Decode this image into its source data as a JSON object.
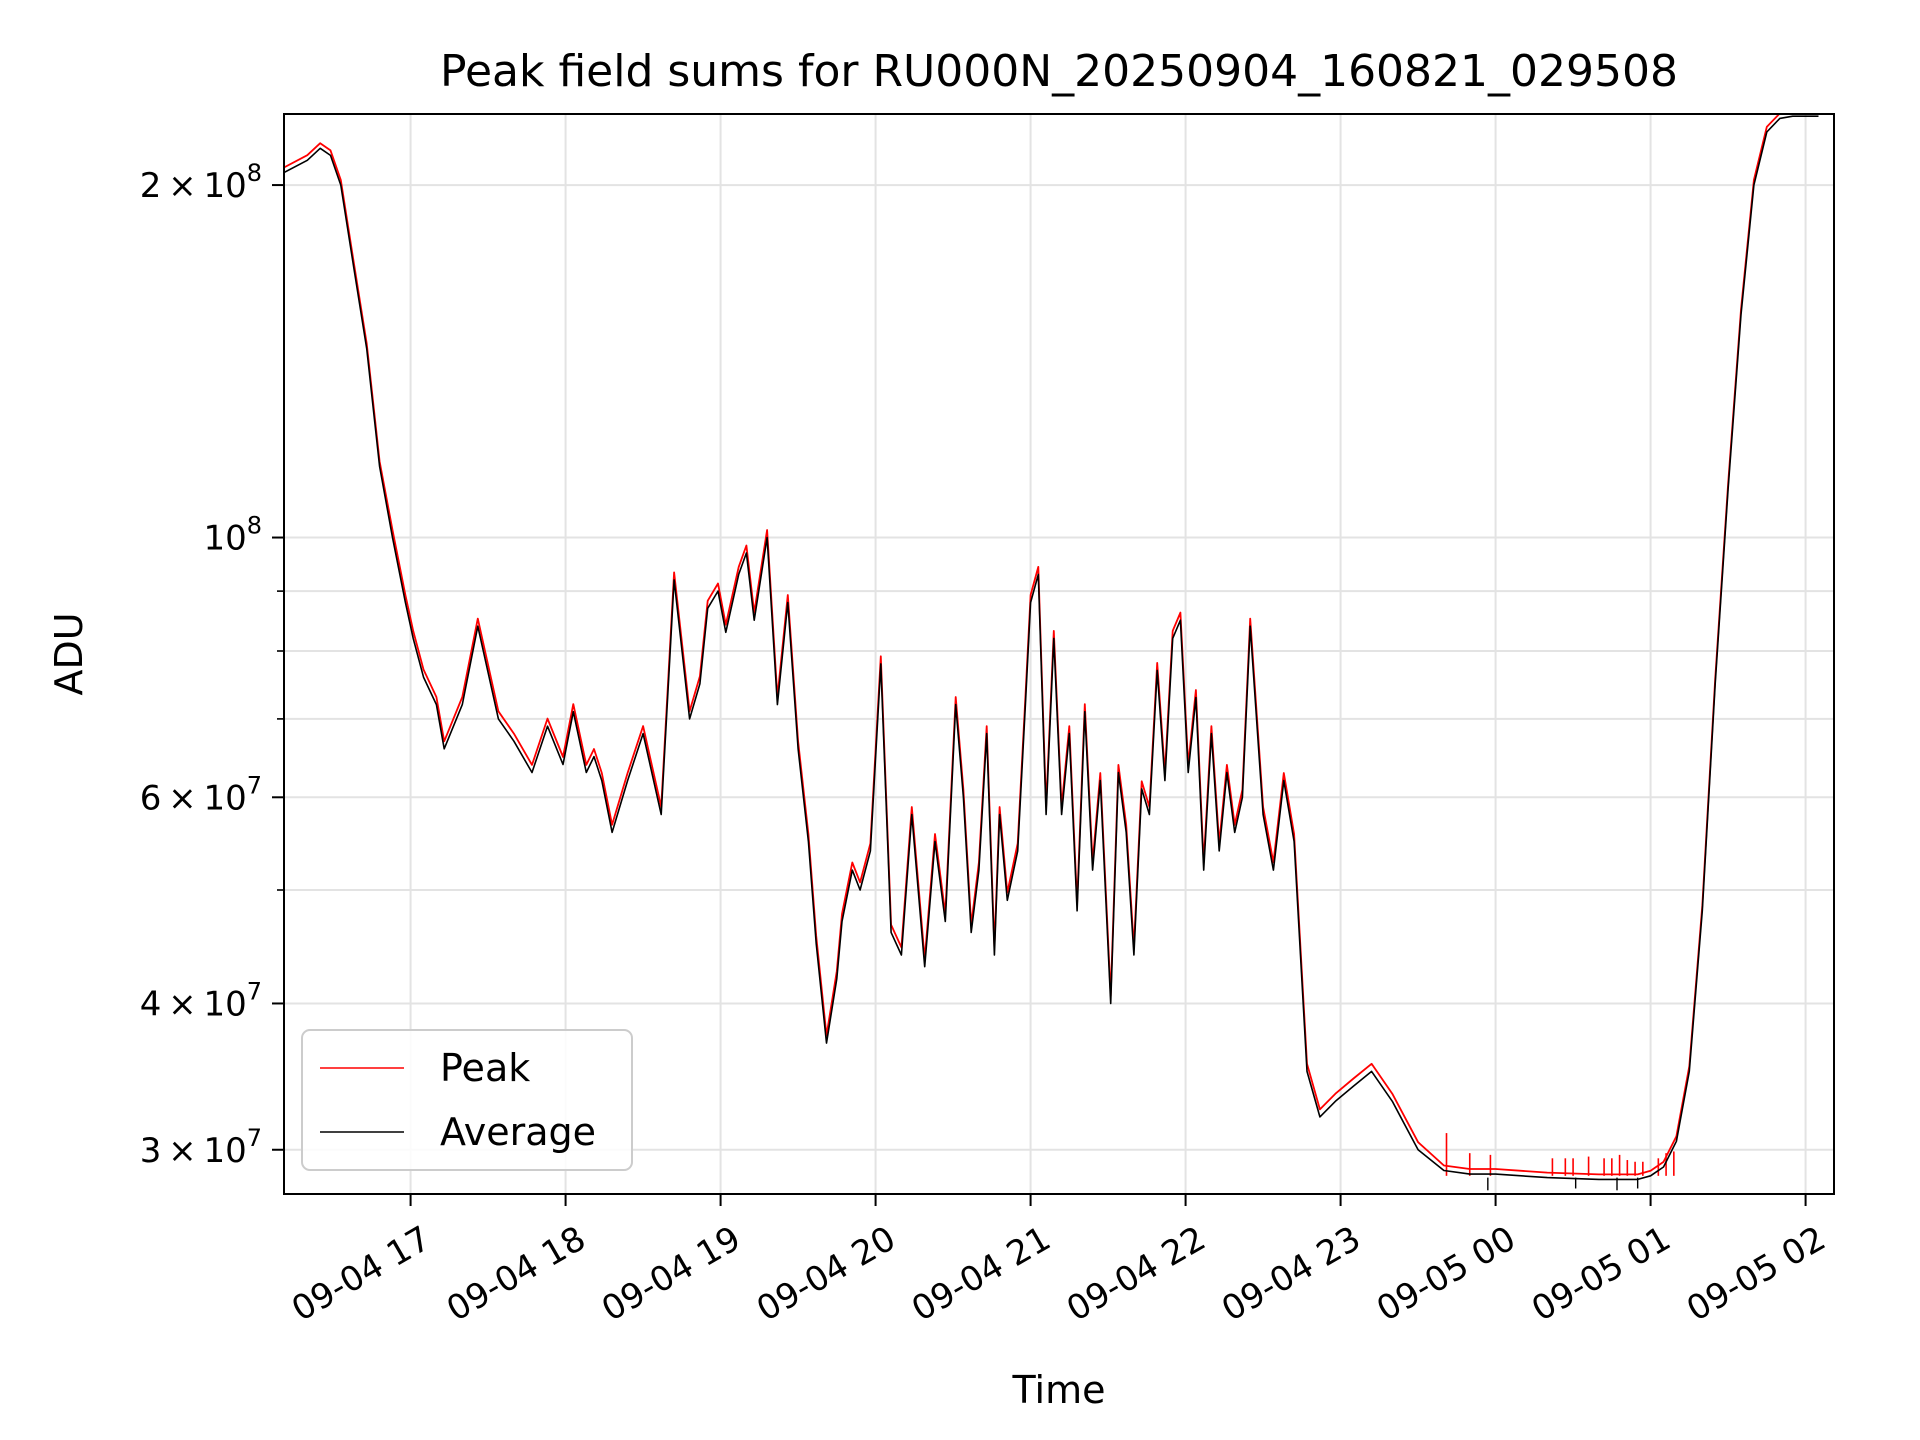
{
  "chart_data": {
    "type": "line",
    "title": "Peak field sums for RU000N_20250904_160821_029508",
    "xlabel": "Time",
    "ylabel": "ADU",
    "yscale": "log",
    "ylim": [
      27500000,
      230000000
    ],
    "xlim": [
      "09-04 16:11",
      "09-05 02:11"
    ],
    "grid": true,
    "legend_position": "lower-left",
    "x_ticks": [
      "09-04 17",
      "09-04 18",
      "09-04 19",
      "09-04 20",
      "09-04 21",
      "09-04 22",
      "09-04 23",
      "09-05 00",
      "09-05 01",
      "09-05 02"
    ],
    "y_ticks": [
      {
        "value": 30000000,
        "label_mantissa": "3",
        "label_exp": "7"
      },
      {
        "value": 40000000,
        "label_mantissa": "4",
        "label_exp": "7"
      },
      {
        "value": 60000000,
        "label_mantissa": "6",
        "label_exp": "7"
      },
      {
        "value": 100000000,
        "label_mantissa": "",
        "label_exp": "8"
      },
      {
        "value": 200000000,
        "label_mantissa": "2",
        "label_exp": "8"
      }
    ],
    "y_minor_ticks": [
      50000000,
      70000000,
      80000000,
      90000000
    ],
    "series": [
      {
        "name": "Peak",
        "color": "#ff0000"
      },
      {
        "name": "Average",
        "color": "#000000"
      }
    ],
    "x": [
      "09-04 16:11",
      "09-04 16:20",
      "09-04 16:25",
      "09-04 16:29",
      "09-04 16:33",
      "09-04 16:38",
      "09-04 16:43",
      "09-04 16:48",
      "09-04 16:53",
      "09-04 16:58",
      "09-04 17:01",
      "09-04 17:05",
      "09-04 17:10",
      "09-04 17:13",
      "09-04 17:20",
      "09-04 17:26",
      "09-04 17:34",
      "09-04 17:40",
      "09-04 17:47",
      "09-04 17:53",
      "09-04 17:59",
      "09-04 18:03",
      "09-04 18:08",
      "09-04 18:11",
      "09-04 18:14",
      "09-04 18:18",
      "09-04 18:24",
      "09-04 18:30",
      "09-04 18:37",
      "09-04 18:42",
      "09-04 18:48",
      "09-04 18:52",
      "09-04 18:55",
      "09-04 18:59",
      "09-04 19:02",
      "09-04 19:07",
      "09-04 19:10",
      "09-04 19:13",
      "09-04 19:18",
      "09-04 19:22",
      "09-04 19:26",
      "09-04 19:30",
      "09-04 19:34",
      "09-04 19:37",
      "09-04 19:41",
      "09-04 19:45",
      "09-04 19:47",
      "09-04 19:51",
      "09-04 19:54",
      "09-04 19:58",
      "09-04 20:02",
      "09-04 20:06",
      "09-04 20:10",
      "09-04 20:14",
      "09-04 20:19",
      "09-04 20:23",
      "09-04 20:27",
      "09-04 20:31",
      "09-04 20:34",
      "09-04 20:37",
      "09-04 20:40",
      "09-04 20:43",
      "09-04 20:46",
      "09-04 20:48",
      "09-04 20:51",
      "09-04 20:55",
      "09-04 20:58",
      "09-04 21:00",
      "09-04 21:03",
      "09-04 21:06",
      "09-04 21:09",
      "09-04 21:12",
      "09-04 21:15",
      "09-04 21:18",
      "09-04 21:21",
      "09-04 21:24",
      "09-04 21:27",
      "09-04 21:31",
      "09-04 21:34",
      "09-04 21:37",
      "09-04 21:40",
      "09-04 21:43",
      "09-04 21:46",
      "09-04 21:49",
      "09-04 21:52",
      "09-04 21:55",
      "09-04 21:58",
      "09-04 22:01",
      "09-04 22:04",
      "09-04 22:07",
      "09-04 22:10",
      "09-04 22:13",
      "09-04 22:16",
      "09-04 22:19",
      "09-04 22:22",
      "09-04 22:25",
      "09-04 22:30",
      "09-04 22:34",
      "09-04 22:38",
      "09-04 22:42",
      "09-04 22:47",
      "09-04 22:52",
      "09-04 22:58",
      "09-04 23:05",
      "09-04 23:12",
      "09-04 23:20",
      "09-04 23:30",
      "09-04 23:40",
      "09-04 23:50",
      "09-05 00:00",
      "09-05 00:20",
      "09-05 00:40",
      "09-05 00:55",
      "09-05 01:00",
      "09-05 01:05",
      "09-05 01:10",
      "09-05 01:15",
      "09-05 01:20",
      "09-05 01:25",
      "09-05 01:30",
      "09-05 01:35",
      "09-05 01:40",
      "09-05 01:45",
      "09-05 01:50",
      "09-05 01:55",
      "09-05 02:00",
      "09-05 02:05",
      "09-05 02:11"
    ],
    "average": [
      205000000,
      210000000,
      215000000,
      212000000,
      200000000,
      170000000,
      145000000,
      115000000,
      100000000,
      88000000,
      82000000,
      76000000,
      72000000,
      66000000,
      72000000,
      84000000,
      70000000,
      67000000,
      63000000,
      69000000,
      64000000,
      71000000,
      63000000,
      65000000,
      62000000,
      56000000,
      62000000,
      68000000,
      58000000,
      92000000,
      70000000,
      75000000,
      87000000,
      90000000,
      83000000,
      93000000,
      97000000,
      85000000,
      100000000,
      72000000,
      88000000,
      66000000,
      55000000,
      45000000,
      37000000,
      42000000,
      47000000,
      52000000,
      50000000,
      54000000,
      78000000,
      46000000,
      44000000,
      58000000,
      43000000,
      55000000,
      47000000,
      72000000,
      60000000,
      46000000,
      52000000,
      68000000,
      44000000,
      58000000,
      49000000,
      54000000,
      72000000,
      88000000,
      93000000,
      58000000,
      82000000,
      58000000,
      68000000,
      48000000,
      71000000,
      52000000,
      62000000,
      40000000,
      63000000,
      56000000,
      44000000,
      61000000,
      58000000,
      77000000,
      62000000,
      82000000,
      85000000,
      63000000,
      73000000,
      52000000,
      68000000,
      54000000,
      63000000,
      56000000,
      60000000,
      84000000,
      58000000,
      52000000,
      62000000,
      55000000,
      35000000,
      32000000,
      33000000,
      34000000,
      35000000,
      33000000,
      30000000,
      28800000,
      28600000,
      28600000,
      28400000,
      28300000,
      28300000,
      28500000,
      29000000,
      30500000,
      35000000,
      48000000,
      75000000,
      110000000,
      155000000,
      200000000,
      222000000,
      228000000,
      229000000,
      229000000,
      229000000
    ],
    "peak_excess": [
      0.01,
      0.01,
      0.01,
      0.01,
      0.01,
      0.01,
      0.01,
      0.01,
      0.015,
      0.015,
      0.015,
      0.015,
      0.015,
      0.015,
      0.015,
      0.015,
      0.015,
      0.015,
      0.015,
      0.015,
      0.015,
      0.015,
      0.015,
      0.015,
      0.015,
      0.015,
      0.015,
      0.015,
      0.015,
      0.015,
      0.015,
      0.015,
      0.015,
      0.015,
      0.015,
      0.015,
      0.015,
      0.015,
      0.015,
      0.015,
      0.015,
      0.015,
      0.015,
      0.015,
      0.015,
      0.015,
      0.015,
      0.015,
      0.015,
      0.015,
      0.015,
      0.015,
      0.015,
      0.015,
      0.015,
      0.015,
      0.015,
      0.015,
      0.015,
      0.015,
      0.015,
      0.015,
      0.015,
      0.015,
      0.015,
      0.015,
      0.015,
      0.015,
      0.015,
      0.015,
      0.015,
      0.015,
      0.015,
      0.015,
      0.015,
      0.015,
      0.015,
      0.015,
      0.015,
      0.015,
      0.015,
      0.015,
      0.015,
      0.015,
      0.015,
      0.015,
      0.015,
      0.015,
      0.015,
      0.015,
      0.015,
      0.015,
      0.015,
      0.015,
      0.015,
      0.015,
      0.015,
      0.015,
      0.015,
      0.015,
      0.015,
      0.015,
      0.015,
      0.015,
      0.015,
      0.015,
      0.015,
      0.01,
      0.01,
      0.01,
      0.01,
      0.01,
      0.01,
      0.01,
      0.01,
      0.01,
      0.01,
      0.01,
      0.01,
      0.01,
      0.01,
      0.01,
      0.01,
      0.01,
      0.01,
      0.01,
      0.01
    ],
    "peak_spikes": [
      {
        "x": "09-04 23:41",
        "value": 31000000
      },
      {
        "x": "09-04 23:50",
        "value": 29800000
      },
      {
        "x": "09-04 23:58",
        "value": 29700000
      },
      {
        "x": "09-05 00:22",
        "value": 29500000
      },
      {
        "x": "09-05 00:27",
        "value": 29500000
      },
      {
        "x": "09-05 00:30",
        "value": 29500000
      },
      {
        "x": "09-05 00:36",
        "value": 29600000
      },
      {
        "x": "09-05 00:42",
        "value": 29500000
      },
      {
        "x": "09-05 00:45",
        "value": 29500000
      },
      {
        "x": "09-05 00:48",
        "value": 29700000
      },
      {
        "x": "09-05 00:51",
        "value": 29400000
      },
      {
        "x": "09-05 00:54",
        "value": 29300000
      },
      {
        "x": "09-05 00:57",
        "value": 29300000
      },
      {
        "x": "09-05 01:03",
        "value": 29500000
      },
      {
        "x": "09-05 01:06",
        "value": 29800000
      },
      {
        "x": "09-05 01:09",
        "value": 29900000
      }
    ],
    "avg_dips": [
      {
        "x": "09-04 23:57",
        "value": 27700000
      },
      {
        "x": "09-05 00:31",
        "value": 27800000
      },
      {
        "x": "09-05 00:47",
        "value": 27700000
      },
      {
        "x": "09-05 00:55",
        "value": 27800000
      }
    ]
  }
}
